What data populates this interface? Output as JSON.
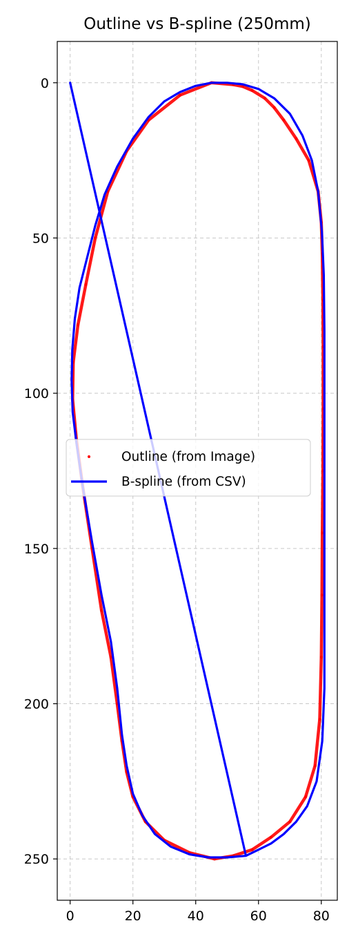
{
  "chart_data": {
    "type": "line",
    "title": "Outline vs B-spline (250mm)",
    "xlabel": "",
    "ylabel": "",
    "xlim": [
      -4.1,
      85.1
    ],
    "ylim": [
      263.3,
      -13.3
    ],
    "y_inverted": true,
    "x_ticks": [
      0,
      20,
      40,
      60,
      80
    ],
    "y_ticks": [
      0,
      50,
      100,
      150,
      200,
      250
    ],
    "grid": true,
    "legend_position": "center-left",
    "series": [
      {
        "name": "Outline (from Image)",
        "kind": "scatter",
        "color": "#ff0000",
        "x": [
          45,
          35,
          25,
          18,
          12,
          8,
          5,
          2.5,
          1,
          0.8,
          2,
          4,
          7,
          10,
          13,
          15,
          16.5,
          18,
          20,
          24,
          30,
          38,
          46,
          52,
          58,
          64,
          70,
          75,
          78,
          79.5,
          80,
          80.2,
          80.3,
          80.5,
          80.6,
          80.6,
          80.5,
          80.3,
          80,
          79,
          76,
          72,
          68,
          65,
          62,
          58,
          55,
          52
        ],
        "y": [
          0,
          4,
          12,
          22,
          35,
          50,
          65,
          78,
          90,
          102,
          115,
          130,
          150,
          170,
          185,
          200,
          212,
          222,
          230,
          238,
          244,
          248,
          250,
          249,
          247,
          243,
          238,
          230,
          220,
          205,
          185,
          165,
          145,
          125,
          105,
          85,
          70,
          55,
          45,
          35,
          25,
          18,
          12,
          8,
          5,
          2.5,
          1.2,
          0.6
        ]
      },
      {
        "name": "B-spline (from CSV)",
        "kind": "line",
        "color": "#0000ff",
        "x": [
          0,
          56,
          60,
          64,
          68,
          72,
          75.5,
          78.5,
          80.3,
          81,
          81,
          81,
          81,
          81,
          81,
          80.8,
          80.2,
          79,
          77,
          74,
          70,
          65,
          60,
          55,
          50,
          45,
          40,
          35,
          30,
          25,
          20,
          15,
          11,
          8,
          5.5,
          3,
          1.5,
          0.7,
          0.5,
          0.8,
          2,
          4,
          7,
          10,
          13,
          15,
          16.5,
          18,
          20,
          23,
          27,
          32,
          38,
          44,
          50,
          56
        ],
        "y": [
          0,
          249,
          247,
          245,
          242,
          238,
          233,
          225,
          212,
          195,
          175,
          150,
          125,
          100,
          80,
          62,
          48,
          35,
          25,
          17,
          10,
          5,
          2,
          0.5,
          0,
          0,
          1,
          3,
          6,
          11,
          18,
          27,
          36,
          46,
          56,
          66,
          76,
          86,
          96,
          106,
          116,
          130,
          148,
          165,
          180,
          195,
          210,
          220,
          229,
          236,
          242,
          246,
          248.5,
          249.5,
          249.5,
          249
        ]
      }
    ]
  }
}
